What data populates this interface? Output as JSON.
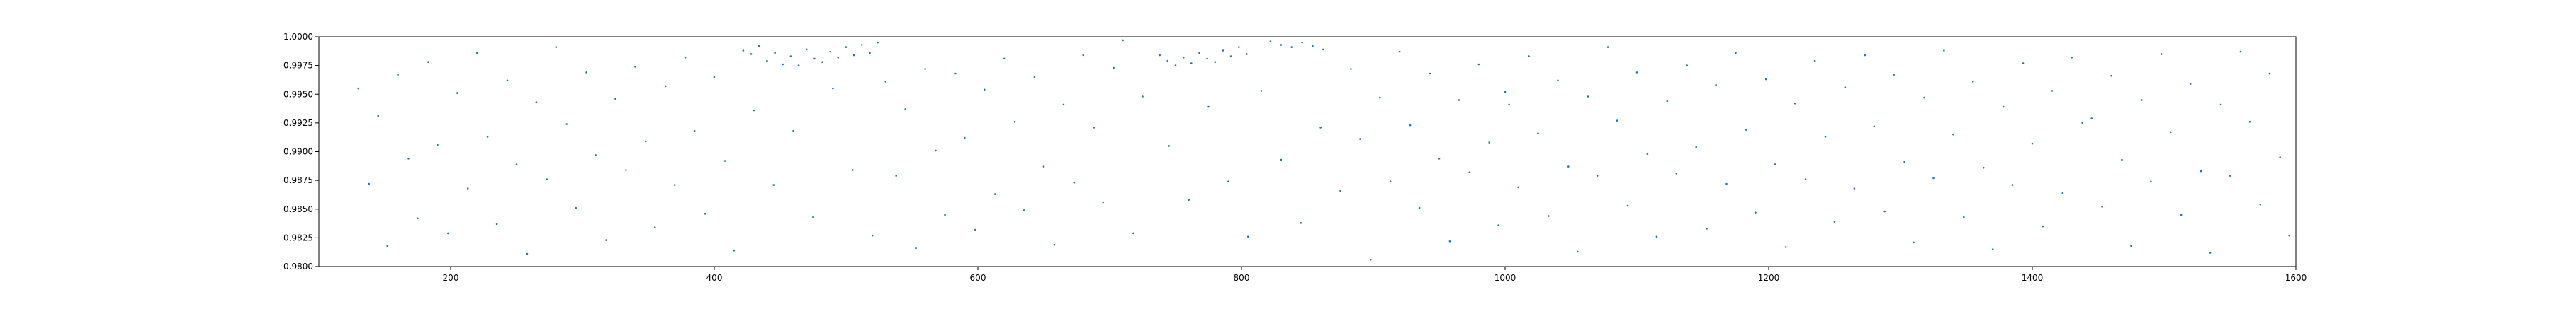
{
  "chart_data": {
    "type": "scatter",
    "title": "",
    "xlabel": "",
    "ylabel": "",
    "xlim": [
      100,
      1600
    ],
    "ylim": [
      0.98,
      1.0
    ],
    "x_ticks": [
      200,
      400,
      600,
      800,
      1000,
      1200,
      1400,
      1600
    ],
    "x_tick_labels": [
      "200",
      "400",
      "600",
      "800",
      "1000",
      "1200",
      "1400",
      "1600"
    ],
    "y_ticks": [
      0.98,
      0.9825,
      0.985,
      0.9875,
      0.99,
      0.9925,
      0.995,
      0.9975,
      1.0
    ],
    "y_tick_labels": [
      "0.9800",
      "0.9825",
      "0.9850",
      "0.9875",
      "0.9900",
      "0.9925",
      "0.9950",
      "0.9975",
      "1.0000"
    ],
    "grid": false,
    "legend": "none",
    "point_color": "#1f77b4",
    "series": [
      {
        "points": [
          [
            130,
            0.9955
          ],
          [
            138,
            0.9872
          ],
          [
            145,
            0.9931
          ],
          [
            152,
            0.9818
          ],
          [
            160,
            0.9967
          ],
          [
            168,
            0.9894
          ],
          [
            175,
            0.9842
          ],
          [
            183,
            0.9978
          ],
          [
            190,
            0.9906
          ],
          [
            198,
            0.9829
          ],
          [
            205,
            0.9951
          ],
          [
            213,
            0.9868
          ],
          [
            220,
            0.9986
          ],
          [
            228,
            0.9913
          ],
          [
            235,
            0.9837
          ],
          [
            243,
            0.9962
          ],
          [
            250,
            0.9889
          ],
          [
            258,
            0.9811
          ],
          [
            265,
            0.9943
          ],
          [
            273,
            0.9876
          ],
          [
            280,
            0.9991
          ],
          [
            288,
            0.9924
          ],
          [
            295,
            0.9851
          ],
          [
            303,
            0.9969
          ],
          [
            310,
            0.9897
          ],
          [
            318,
            0.9823
          ],
          [
            325,
            0.9946
          ],
          [
            333,
            0.9884
          ],
          [
            340,
            0.9974
          ],
          [
            348,
            0.9909
          ],
          [
            355,
            0.9834
          ],
          [
            363,
            0.9957
          ],
          [
            370,
            0.9871
          ],
          [
            378,
            0.9982
          ],
          [
            385,
            0.9918
          ],
          [
            393,
            0.9846
          ],
          [
            400,
            0.9965
          ],
          [
            408,
            0.9892
          ],
          [
            415,
            0.9814
          ],
          [
            422,
            0.9988
          ],
          [
            428,
            0.9985
          ],
          [
            434,
            0.9992
          ],
          [
            440,
            0.9979
          ],
          [
            446,
            0.9986
          ],
          [
            452,
            0.9976
          ],
          [
            458,
            0.9983
          ],
          [
            464,
            0.9975
          ],
          [
            470,
            0.9989
          ],
          [
            476,
            0.9981
          ],
          [
            482,
            0.9978
          ],
          [
            488,
            0.9987
          ],
          [
            494,
            0.9982
          ],
          [
            500,
            0.9991
          ],
          [
            506,
            0.9984
          ],
          [
            512,
            0.9993
          ],
          [
            518,
            0.9986
          ],
          [
            524,
            0.9995
          ],
          [
            430,
            0.9936
          ],
          [
            445,
            0.9871
          ],
          [
            460,
            0.9918
          ],
          [
            475,
            0.9843
          ],
          [
            490,
            0.9955
          ],
          [
            505,
            0.9884
          ],
          [
            520,
            0.9827
          ],
          [
            530,
            0.9961
          ],
          [
            538,
            0.9879
          ],
          [
            545,
            0.9937
          ],
          [
            553,
            0.9816
          ],
          [
            560,
            0.9972
          ],
          [
            568,
            0.9901
          ],
          [
            575,
            0.9845
          ],
          [
            583,
            0.9968
          ],
          [
            590,
            0.9912
          ],
          [
            598,
            0.9832
          ],
          [
            605,
            0.9954
          ],
          [
            613,
            0.9863
          ],
          [
            620,
            0.9981
          ],
          [
            628,
            0.9926
          ],
          [
            635,
            0.9849
          ],
          [
            643,
            0.9965
          ],
          [
            650,
            0.9887
          ],
          [
            658,
            0.9819
          ],
          [
            665,
            0.9941
          ],
          [
            673,
            0.9873
          ],
          [
            680,
            0.9984
          ],
          [
            688,
            0.9921
          ],
          [
            695,
            0.9856
          ],
          [
            703,
            0.9973
          ],
          [
            710,
            0.9997
          ],
          [
            718,
            0.9829
          ],
          [
            725,
            0.9948
          ],
          [
            738,
            0.9984
          ],
          [
            744,
            0.9979
          ],
          [
            750,
            0.9975
          ],
          [
            756,
            0.9982
          ],
          [
            762,
            0.9977
          ],
          [
            768,
            0.9986
          ],
          [
            774,
            0.9981
          ],
          [
            780,
            0.9978
          ],
          [
            786,
            0.9988
          ],
          [
            792,
            0.9983
          ],
          [
            798,
            0.9991
          ],
          [
            804,
            0.9985
          ],
          [
            822,
            0.9996
          ],
          [
            830,
            0.9993
          ],
          [
            838,
            0.9991
          ],
          [
            846,
            0.9995
          ],
          [
            854,
            0.9992
          ],
          [
            862,
            0.9989
          ],
          [
            745,
            0.9905
          ],
          [
            760,
            0.9858
          ],
          [
            775,
            0.9939
          ],
          [
            790,
            0.9874
          ],
          [
            805,
            0.9826
          ],
          [
            815,
            0.9953
          ],
          [
            830,
            0.9893
          ],
          [
            845,
            0.9838
          ],
          [
            860,
            0.9921
          ],
          [
            875,
            0.9866
          ],
          [
            883,
            0.9972
          ],
          [
            890,
            0.9911
          ],
          [
            898,
            0.9806
          ],
          [
            905,
            0.9947
          ],
          [
            913,
            0.9874
          ],
          [
            920,
            0.9987
          ],
          [
            928,
            0.9923
          ],
          [
            935,
            0.9851
          ],
          [
            943,
            0.9968
          ],
          [
            950,
            0.9894
          ],
          [
            958,
            0.9822
          ],
          [
            965,
            0.9945
          ],
          [
            973,
            0.9882
          ],
          [
            980,
            0.9976
          ],
          [
            988,
            0.9908
          ],
          [
            995,
            0.9836
          ],
          [
            1000,
            0.9952
          ],
          [
            1003,
            0.9941
          ],
          [
            1010,
            0.9869
          ],
          [
            1018,
            0.9983
          ],
          [
            1025,
            0.9916
          ],
          [
            1033,
            0.9844
          ],
          [
            1040,
            0.9962
          ],
          [
            1048,
            0.9887
          ],
          [
            1055,
            0.9813
          ],
          [
            1063,
            0.9948
          ],
          [
            1070,
            0.9879
          ],
          [
            1078,
            0.9991
          ],
          [
            1085,
            0.9927
          ],
          [
            1093,
            0.9853
          ],
          [
            1100,
            0.9969
          ],
          [
            1108,
            0.9898
          ],
          [
            1115,
            0.9826
          ],
          [
            1123,
            0.9944
          ],
          [
            1130,
            0.9881
          ],
          [
            1138,
            0.9975
          ],
          [
            1145,
            0.9904
          ],
          [
            1153,
            0.9833
          ],
          [
            1160,
            0.9958
          ],
          [
            1168,
            0.9872
          ],
          [
            1175,
            0.9986
          ],
          [
            1183,
            0.9919
          ],
          [
            1190,
            0.9847
          ],
          [
            1198,
            0.9963
          ],
          [
            1205,
            0.9889
          ],
          [
            1213,
            0.9817
          ],
          [
            1220,
            0.9942
          ],
          [
            1228,
            0.9876
          ],
          [
            1235,
            0.9979
          ],
          [
            1243,
            0.9913
          ],
          [
            1250,
            0.9839
          ],
          [
            1258,
            0.9956
          ],
          [
            1265,
            0.9868
          ],
          [
            1273,
            0.9984
          ],
          [
            1280,
            0.9922
          ],
          [
            1288,
            0.9848
          ],
          [
            1295,
            0.9967
          ],
          [
            1303,
            0.9891
          ],
          [
            1310,
            0.9821
          ],
          [
            1318,
            0.9947
          ],
          [
            1325,
            0.9877
          ],
          [
            1333,
            0.9988
          ],
          [
            1340,
            0.9915
          ],
          [
            1348,
            0.9843
          ],
          [
            1355,
            0.9961
          ],
          [
            1363,
            0.9886
          ],
          [
            1370,
            0.9815
          ],
          [
            1378,
            0.9939
          ],
          [
            1385,
            0.9871
          ],
          [
            1393,
            0.9977
          ],
          [
            1400,
            0.9907
          ],
          [
            1408,
            0.9835
          ],
          [
            1415,
            0.9953
          ],
          [
            1423,
            0.9864
          ],
          [
            1430,
            0.9982
          ],
          [
            1438,
            0.9925
          ],
          [
            1445,
            0.9929
          ],
          [
            1453,
            0.9852
          ],
          [
            1460,
            0.9966
          ],
          [
            1468,
            0.9893
          ],
          [
            1475,
            0.9818
          ],
          [
            1483,
            0.9945
          ],
          [
            1490,
            0.9874
          ],
          [
            1498,
            0.9985
          ],
          [
            1505,
            0.9917
          ],
          [
            1513,
            0.9845
          ],
          [
            1520,
            0.9959
          ],
          [
            1528,
            0.9883
          ],
          [
            1535,
            0.9812
          ],
          [
            1543,
            0.9941
          ],
          [
            1550,
            0.9879
          ],
          [
            1558,
            0.9987
          ],
          [
            1565,
            0.9926
          ],
          [
            1573,
            0.9854
          ],
          [
            1580,
            0.9968
          ],
          [
            1588,
            0.9895
          ],
          [
            1595,
            0.9827
          ]
        ]
      }
    ]
  }
}
